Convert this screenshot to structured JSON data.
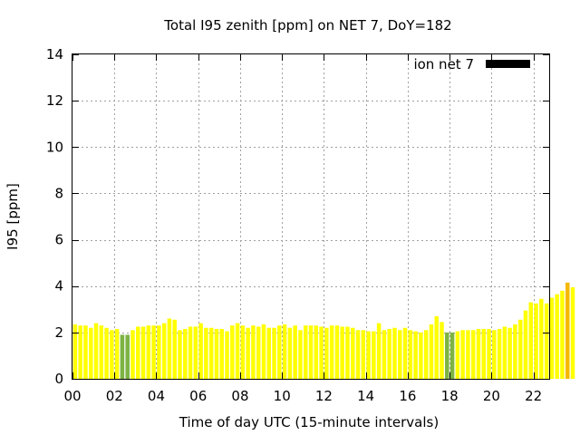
{
  "chart_data": {
    "type": "bar",
    "title": "Total I95 zenith [ppm] on NET 7, DoY=182",
    "xlabel": "Time of day UTC (15-minute intervals)",
    "ylabel": "I95 [ppm]",
    "xlim": [
      0,
      22.75
    ],
    "ylim": [
      0,
      14
    ],
    "x_ticks": [
      "00",
      "02",
      "04",
      "06",
      "08",
      "10",
      "12",
      "14",
      "16",
      "18",
      "20",
      "22"
    ],
    "y_ticks": [
      "0",
      "2",
      "4",
      "6",
      "8",
      "10",
      "12",
      "14"
    ],
    "grid": true,
    "legend": {
      "placement": "top-right",
      "label": "ion net 7",
      "color": "#000000"
    },
    "bar_interval_hours": 0.25,
    "series": [
      {
        "values": [
          2.35,
          2.3,
          2.3,
          2.2,
          2.4,
          2.3,
          2.2,
          2.1,
          2.15,
          1.9,
          1.9,
          2.1,
          2.25,
          2.25,
          2.3,
          2.3,
          2.3,
          2.4,
          2.6,
          2.55,
          2.1,
          2.15,
          2.25,
          2.25,
          2.4,
          2.2,
          2.2,
          2.15,
          2.15,
          2.05,
          2.3,
          2.4,
          2.3,
          2.2,
          2.3,
          2.25,
          2.35,
          2.2,
          2.2,
          2.3,
          2.35,
          2.2,
          2.3,
          2.1,
          2.3,
          2.3,
          2.3,
          2.25,
          2.2,
          2.3,
          2.3,
          2.25,
          2.25,
          2.2,
          2.1,
          2.1,
          2.05,
          2.05,
          2.4,
          2.1,
          2.15,
          2.2,
          2.1,
          2.2,
          2.1,
          2.05,
          2.0,
          2.1,
          2.35,
          2.7,
          2.45,
          2.0,
          2.0,
          2.05,
          2.1,
          2.1,
          2.1,
          2.15,
          2.15,
          2.15,
          2.1,
          2.15,
          2.25,
          2.2,
          2.35,
          2.55,
          2.95,
          3.3,
          3.25,
          3.45,
          3.25,
          3.5,
          3.65,
          3.8,
          4.15,
          3.95
        ],
        "colors": {
          "default": "#ffff00",
          "low": "#7cb342",
          "high": "#f5b800"
        },
        "low_indices": [
          9,
          10,
          71,
          72
        ],
        "high_indices": [
          94
        ]
      }
    ]
  }
}
